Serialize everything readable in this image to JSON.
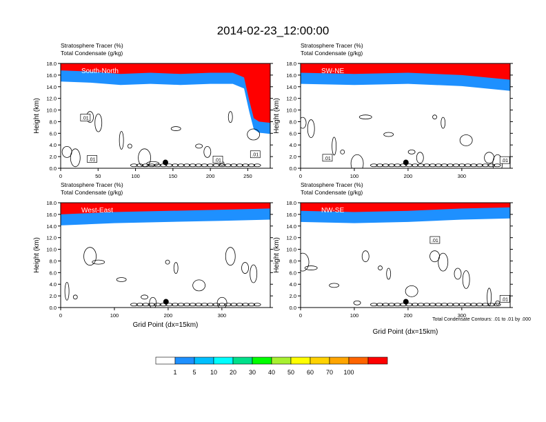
{
  "title": "2014-02-23_12:00:00",
  "footnote": "Total Condensate Contours: .01 to .01 by .000",
  "colorbar": {
    "colors": [
      "#ffffff",
      "#1e90ff",
      "#00bfff",
      "#00ffff",
      "#00e08a",
      "#00ff00",
      "#a8f030",
      "#ffff00",
      "#ffd200",
      "#ffa500",
      "#ff6400",
      "#ff0000"
    ],
    "labels": [
      "1",
      "5",
      "10",
      "20",
      "30",
      "40",
      "50",
      "60",
      "70",
      "100"
    ]
  },
  "chart_data": [
    {
      "type": "heatmap",
      "label": "South-North",
      "subtitle_left": "Stratosphere Tracer   (%)",
      "subtitle_left2": "Total Condensate   (g/kg)",
      "ylabel": "Height (km)",
      "xlabel": "",
      "xlim": [
        0,
        280
      ],
      "ylim": [
        0,
        18
      ],
      "xticks": [
        0,
        50,
        100,
        150,
        200,
        250
      ],
      "yticks": [
        "0.0",
        "2.0",
        "4.0",
        "6.0",
        "8.0",
        "10.0",
        "12.0",
        "14.0",
        "16.0",
        "18.0"
      ],
      "tropopause_km": [
        [
          0,
          15.2
        ],
        [
          40,
          15.0
        ],
        [
          80,
          14.6
        ],
        [
          120,
          14.8
        ],
        [
          160,
          14.6
        ],
        [
          200,
          14.8
        ],
        [
          230,
          14.8
        ],
        [
          245,
          14.0
        ],
        [
          252,
          10.0
        ],
        [
          258,
          7.0
        ],
        [
          265,
          6.4
        ],
        [
          280,
          6.2
        ]
      ],
      "boxed_labels": [
        {
          "x": 33,
          "y": 8.7,
          "text": ".01"
        },
        {
          "x": 42,
          "y": 1.6,
          "text": ".01"
        },
        {
          "x": 210,
          "y": 1.5,
          "text": ".01"
        },
        {
          "x": 260,
          "y": 2.4,
          "text": ".01"
        }
      ],
      "marker": {
        "x": 140,
        "y": 1.0
      }
    },
    {
      "type": "heatmap",
      "label": "SW-NE",
      "subtitle_left": "Stratosphere Tracer   (%)",
      "subtitle_left2": "Total Condensate   (g/kg)",
      "ylabel": "Height (km)",
      "xlabel": "",
      "xlim": [
        0,
        390
      ],
      "ylim": [
        0,
        18
      ],
      "xticks": [
        0,
        100,
        200,
        300
      ],
      "yticks": [
        "0.0",
        "2.0",
        "4.0",
        "6.0",
        "8.0",
        "10.0",
        "12.0",
        "14.0",
        "16.0",
        "18.0"
      ],
      "tropopause_km": [
        [
          0,
          14.8
        ],
        [
          100,
          14.6
        ],
        [
          200,
          14.8
        ],
        [
          300,
          14.4
        ],
        [
          390,
          13.6
        ]
      ],
      "boxed_labels": [
        {
          "x": 50,
          "y": 1.8,
          "text": ".01"
        },
        {
          "x": 380,
          "y": 1.4,
          "text": ".01"
        }
      ],
      "marker": {
        "x": 196,
        "y": 1.0
      }
    },
    {
      "type": "heatmap",
      "label": "West-East",
      "subtitle_left": "Stratosphere Tracer   (%)",
      "subtitle_left2": "Total Condensate   (g/kg)",
      "ylabel": "Height (km)",
      "xlabel": "Grid Point (dx=15km)",
      "xlim": [
        0,
        390
      ],
      "ylim": [
        0,
        18
      ],
      "xticks": [
        0,
        100,
        200,
        300
      ],
      "yticks": [
        "0.0",
        "2.0",
        "4.0",
        "6.0",
        "8.0",
        "10.0",
        "12.0",
        "14.0",
        "16.0",
        "18.0"
      ],
      "tropopause_km": [
        [
          0,
          14.4
        ],
        [
          100,
          14.8
        ],
        [
          200,
          15.0
        ],
        [
          300,
          15.2
        ],
        [
          390,
          15.4
        ]
      ],
      "boxed_labels": [],
      "marker": {
        "x": 196,
        "y": 1.0
      }
    },
    {
      "type": "heatmap",
      "label": "NW-SE",
      "subtitle_left": "Stratosphere Tracer   (%)",
      "subtitle_left2": "Total Condensate   (g/kg)",
      "ylabel": "Height (km)",
      "xlabel": "Grid Point (dx=15km)",
      "xlim": [
        0,
        390
      ],
      "ylim": [
        0,
        18
      ],
      "xticks": [
        0,
        100,
        200,
        300
      ],
      "yticks": [
        "0.0",
        "2.0",
        "4.0",
        "6.0",
        "8.0",
        "10.0",
        "12.0",
        "14.0",
        "16.0",
        "18.0"
      ],
      "tropopause_km": [
        [
          0,
          15.0
        ],
        [
          100,
          14.8
        ],
        [
          200,
          15.0
        ],
        [
          300,
          15.4
        ],
        [
          390,
          15.6
        ]
      ],
      "boxed_labels": [
        {
          "x": 250,
          "y": 11.6,
          "text": ".01"
        },
        {
          "x": 380,
          "y": 1.5,
          "text": ".01"
        }
      ],
      "marker": {
        "x": 196,
        "y": 1.0
      }
    }
  ]
}
